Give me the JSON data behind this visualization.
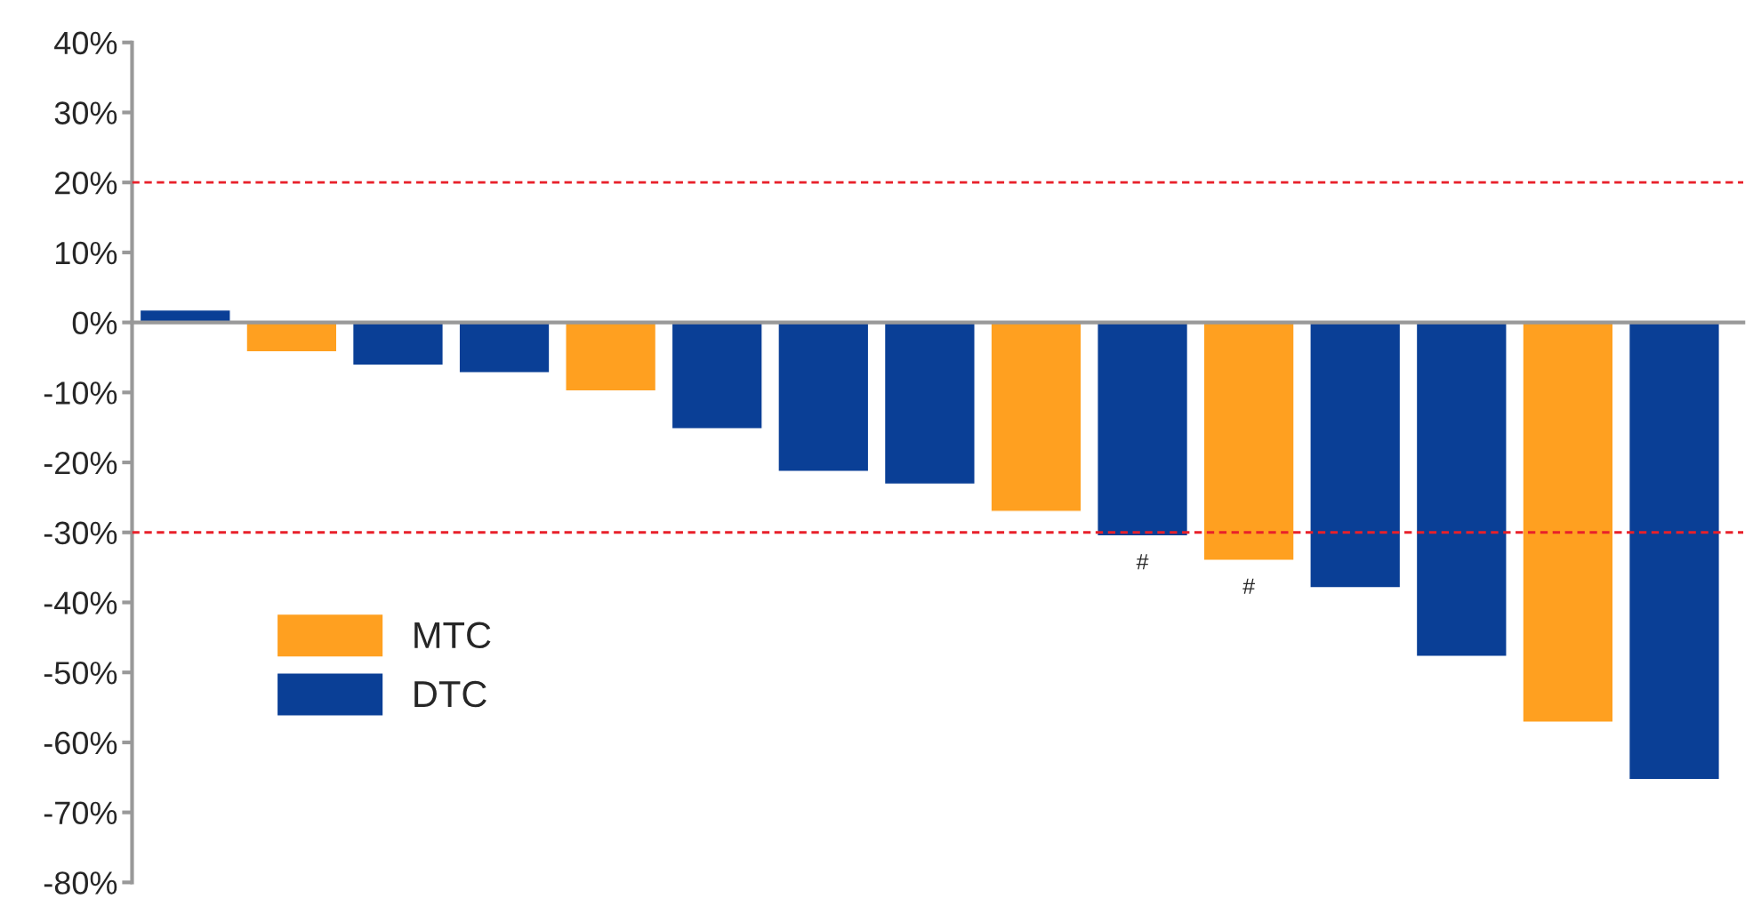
{
  "chart_data": {
    "type": "bar",
    "categories": [
      null,
      null,
      null,
      null,
      null,
      null,
      null,
      null,
      null,
      null,
      null,
      null,
      null,
      null,
      null
    ],
    "series": [
      {
        "name": "MTC",
        "color": "#ffa020",
        "values": [
          null,
          -4.2,
          null,
          null,
          -9.8,
          null,
          null,
          null,
          -27.0,
          null,
          -34.0,
          null,
          null,
          -57.1,
          null
        ],
        "value_labels": [
          null,
          null,
          null,
          null,
          null,
          null,
          null,
          null,
          null,
          null,
          "#",
          null,
          null,
          null,
          null
        ]
      },
      {
        "name": "DTC",
        "color": "#0a3f96",
        "values": [
          1.8,
          null,
          -6.1,
          -7.2,
          null,
          -15.2,
          -21.3,
          -23.1,
          null,
          -30.5,
          null,
          -37.9,
          -47.7,
          null,
          -65.3
        ],
        "value_labels": [
          null,
          null,
          null,
          null,
          null,
          null,
          null,
          null,
          null,
          "#",
          null,
          null,
          null,
          null,
          null
        ]
      }
    ],
    "ylim": [
      -80,
      40
    ],
    "yticks": [
      {
        "value": 40,
        "label": "40%"
      },
      {
        "value": 30,
        "label": "30%"
      },
      {
        "value": 20,
        "label": "20%"
      },
      {
        "value": 10,
        "label": "10%"
      },
      {
        "value": 0,
        "label": "0%"
      },
      {
        "value": -10,
        "label": "-10%"
      },
      {
        "value": -20,
        "label": "-20%"
      },
      {
        "value": -30,
        "label": "-30%"
      },
      {
        "value": -40,
        "label": "-40%"
      },
      {
        "value": -50,
        "label": "-50%"
      },
      {
        "value": -60,
        "label": "-60%"
      },
      {
        "value": -70,
        "label": "-70%"
      },
      {
        "value": -80,
        "label": "-80%"
      }
    ],
    "ref_lines": [
      {
        "axis": "y",
        "value": 20,
        "color": "#e8202a",
        "line_style": "dashed"
      },
      {
        "axis": "y",
        "value": -30,
        "color": "#e8202a",
        "line_style": "dashed"
      }
    ],
    "grid": false,
    "legend": "bottom left"
  }
}
